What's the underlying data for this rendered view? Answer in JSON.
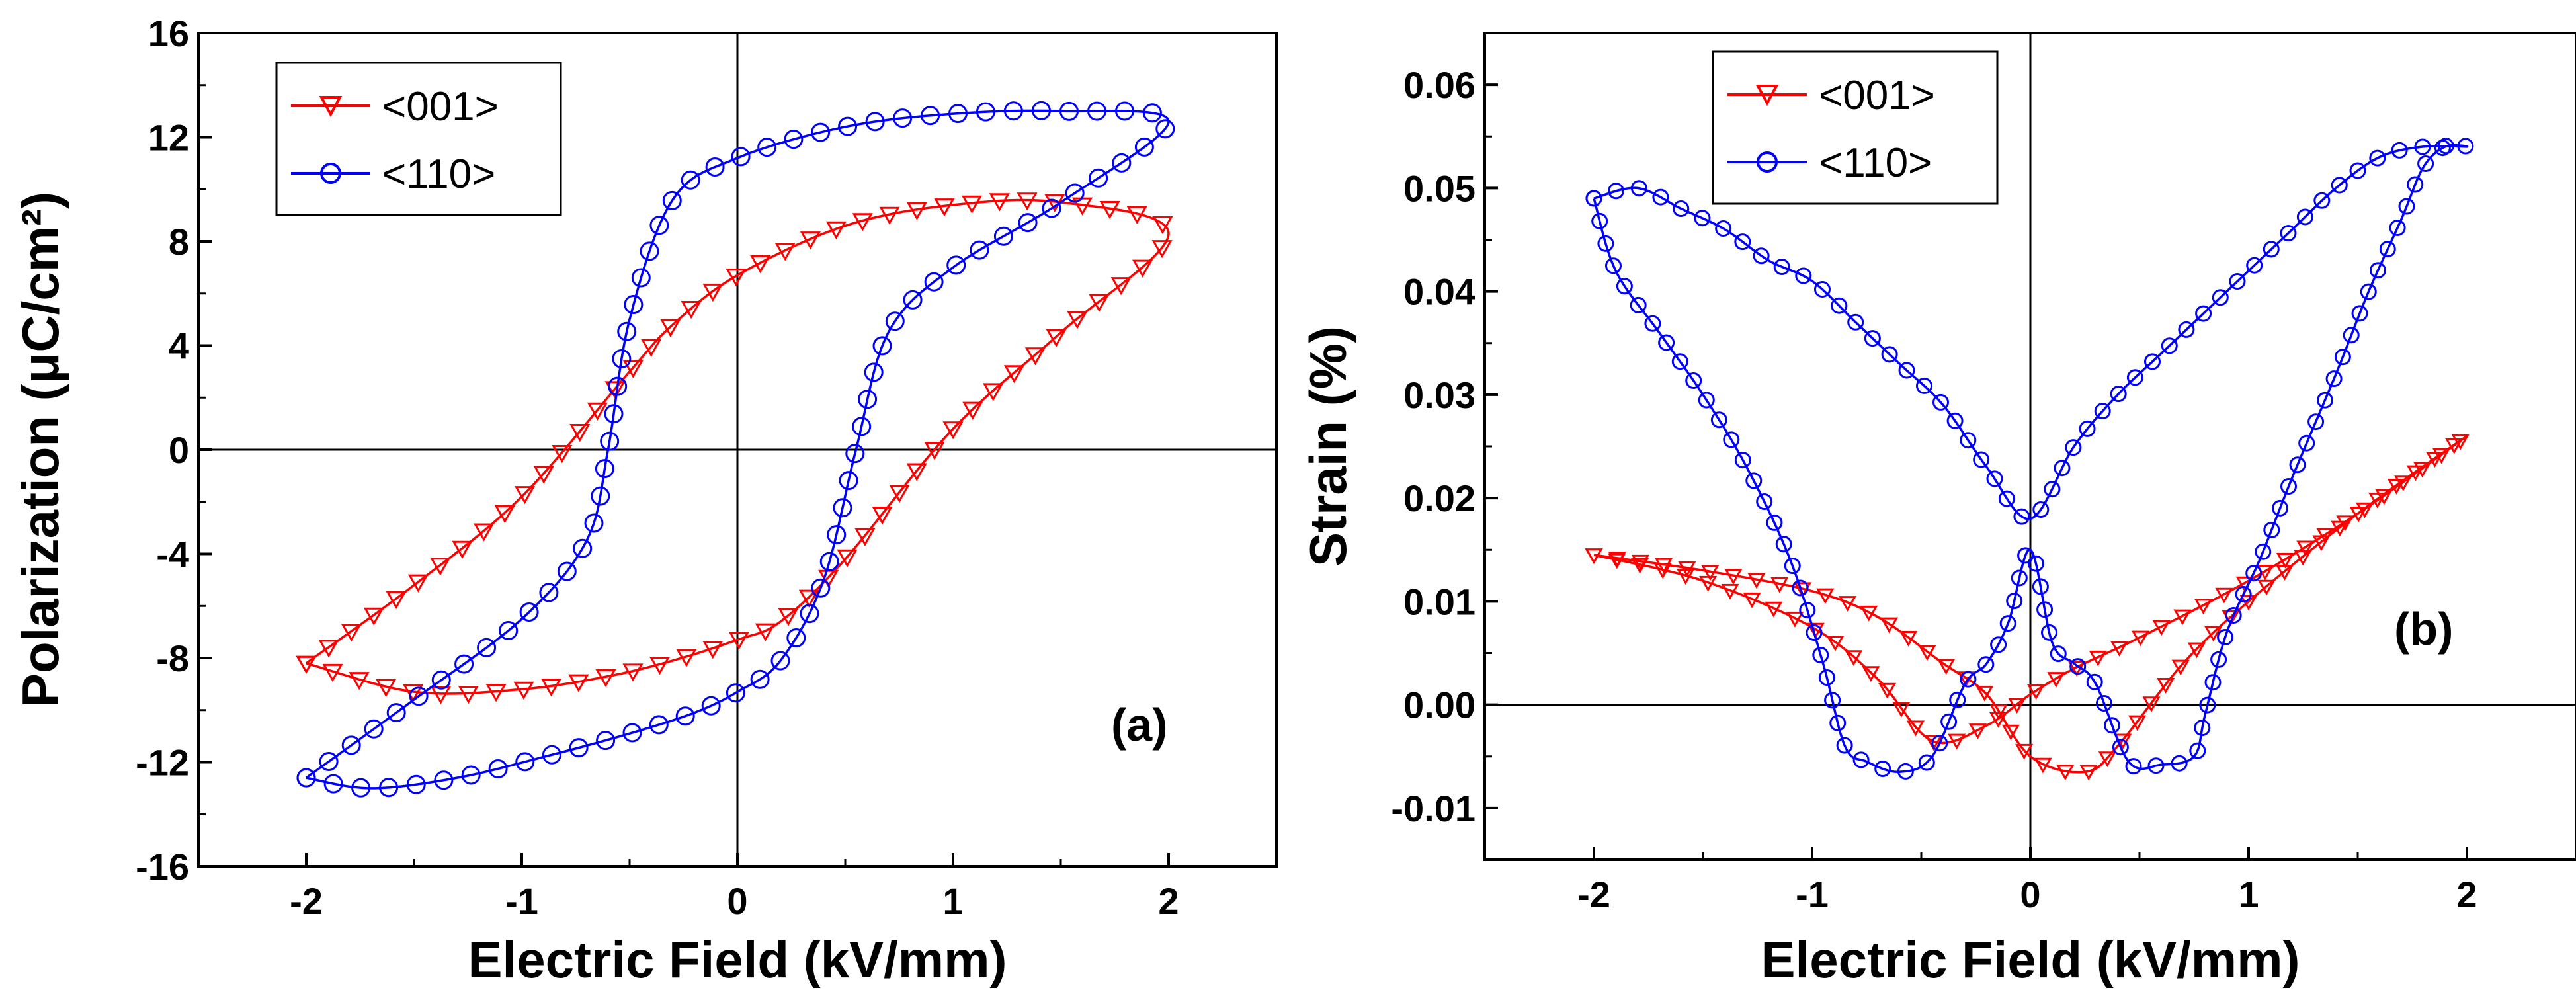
{
  "chart_data": [
    {
      "type": "line",
      "panel_label": "(a)",
      "xlabel": "Electric Field (kV/mm)",
      "ylabel": "Polarization (μC/cm²)",
      "xlim": [
        -2.5,
        2.5
      ],
      "ylim": [
        -16,
        16
      ],
      "xticks": [
        "-2",
        "-1",
        "0",
        "1",
        "2"
      ],
      "yticks": [
        "-16",
        "-12",
        "-8",
        "-4",
        "0",
        "4",
        "8",
        "12",
        "16"
      ],
      "legend_position": "top-left",
      "series": [
        {
          "name": "<001>",
          "color": "#ff0000",
          "marker": "triangle-down",
          "x": [
            -2.0,
            -1.5,
            -1.0,
            -0.6,
            -0.3,
            0.0,
            0.2,
            0.5,
            1.0,
            1.5,
            2.0,
            1.5,
            1.0,
            0.5,
            0.0,
            -0.3,
            -0.5,
            -1.0,
            -1.5,
            -2.0
          ],
          "y": [
            -8.2,
            -9.3,
            -9.2,
            -8.7,
            -8.1,
            -7.3,
            -6.6,
            -4.2,
            0.8,
            4.5,
            8.3,
            9.5,
            9.4,
            8.6,
            6.7,
            4.8,
            3.0,
            -1.8,
            -5.2,
            -8.2
          ]
        },
        {
          "name": "<110>",
          "color": "#0000ff",
          "marker": "circle",
          "x": [
            -2.0,
            -1.7,
            -1.3,
            -0.9,
            -0.5,
            -0.2,
            0.0,
            0.2,
            0.4,
            0.55,
            0.7,
            1.0,
            1.5,
            2.0,
            1.5,
            1.0,
            0.5,
            0.0,
            -0.3,
            -0.5,
            -0.6,
            -0.7,
            -1.0,
            -1.5,
            -2.0
          ],
          "y": [
            -12.6,
            -13.0,
            -12.6,
            -11.8,
            -10.9,
            -10.1,
            -9.3,
            -8.1,
            -5.0,
            0.0,
            4.5,
            7.0,
            9.5,
            12.6,
            13.0,
            12.9,
            12.4,
            11.2,
            9.6,
            5.0,
            0.0,
            -3.5,
            -6.5,
            -9.6,
            -12.6
          ]
        }
      ]
    },
    {
      "type": "line",
      "panel_label": "(b)",
      "xlabel": "Electric Field (kV/mm)",
      "ylabel": "Strain (%)",
      "xlim": [
        -2.5,
        2.5
      ],
      "ylim": [
        -0.015,
        0.065
      ],
      "xticks": [
        "-2",
        "-1",
        "0",
        "1",
        "2"
      ],
      "yticks": [
        "-0.01",
        "0.00",
        "0.01",
        "0.02",
        "0.03",
        "0.04",
        "0.05",
        "0.06"
      ],
      "legend_position": "top-left",
      "series": [
        {
          "name": "<001>",
          "color": "#ff0000",
          "marker": "triangle-down",
          "x": [
            -2.0,
            -1.5,
            -1.0,
            -0.7,
            -0.45,
            -0.2,
            0.0,
            0.2,
            0.5,
            1.0,
            1.5,
            2.0,
            1.5,
            1.0,
            0.7,
            0.4,
            0.25,
            0.0,
            -0.2,
            -0.4,
            -0.7,
            -1.0,
            -1.5,
            -2.0
          ],
          "y": [
            0.0145,
            0.012,
            0.0075,
            0.0025,
            -0.0035,
            -0.002,
            0.001,
            0.0035,
            0.0065,
            0.012,
            0.0185,
            0.026,
            0.0185,
            0.01,
            0.004,
            -0.004,
            -0.0065,
            -0.005,
            0.001,
            0.004,
            0.0085,
            0.011,
            0.013,
            0.0145
          ]
        },
        {
          "name": "<110>",
          "color": "#0000ff",
          "marker": "circle",
          "x": [
            -2.0,
            -1.9,
            -1.7,
            -1.5,
            -1.3,
            -1.1,
            -0.95,
            -0.85,
            -0.75,
            -0.6,
            -0.45,
            -0.3,
            -0.2,
            -0.1,
            0.0,
            0.1,
            0.2,
            0.3,
            0.45,
            0.6,
            0.75,
            0.8,
            0.9,
            1.05,
            1.2,
            1.4,
            1.55,
            1.7,
            1.8,
            1.9,
            2.0,
            1.8,
            1.6,
            1.4,
            1.2,
            1.0,
            0.8,
            0.6,
            0.4,
            0.2,
            0.0,
            -0.2,
            -0.4,
            -0.6,
            -0.8,
            -1.0,
            -1.2,
            -1.4,
            -1.6,
            -1.8,
            -2.0
          ],
          "y": [
            0.049,
            0.042,
            0.036,
            0.03,
            0.023,
            0.014,
            0.004,
            -0.004,
            -0.0055,
            -0.0065,
            -0.005,
            0.002,
            0.004,
            0.008,
            0.015,
            0.006,
            0.004,
            0.002,
            -0.0055,
            -0.0058,
            -0.005,
            -0.001,
            0.007,
            0.014,
            0.022,
            0.032,
            0.04,
            0.047,
            0.052,
            0.054,
            0.054,
            0.054,
            0.053,
            0.05,
            0.046,
            0.042,
            0.038,
            0.034,
            0.03,
            0.025,
            0.018,
            0.023,
            0.029,
            0.033,
            0.037,
            0.041,
            0.043,
            0.046,
            0.048,
            0.05,
            0.049
          ]
        }
      ]
    }
  ]
}
